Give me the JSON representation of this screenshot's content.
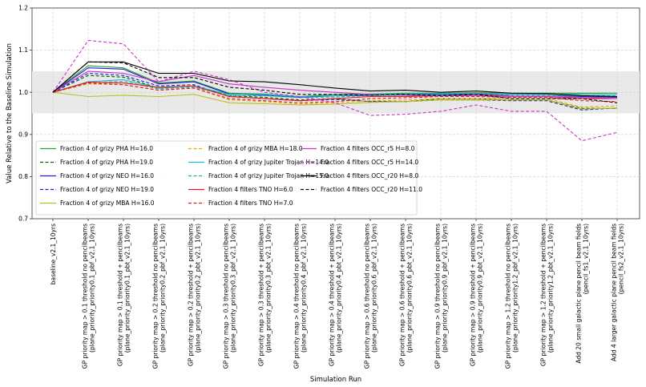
{
  "chart_data": {
    "type": "line",
    "xlabel": "Simulation Run",
    "ylabel": "Value Relative to the Baseline Simulation",
    "ylim": [
      0.7,
      1.2
    ],
    "yticks": [
      0.7,
      0.8,
      0.9,
      1.0,
      1.1,
      1.2
    ],
    "ytick_labels": [
      "0.7",
      "0.8",
      "0.9",
      "1.0",
      "1.1",
      "1.2"
    ],
    "grid": true,
    "shaded_band": [
      0.95,
      1.05
    ],
    "legend_location": "lower-left",
    "categories": [
      [
        "baseline_v2.1_10yrs"
      ],
      [
        "GP priority map > 0.1 threshold no pencilbeams",
        "(plane_priority_priority0.1_pbf_v2.1_10yrs)"
      ],
      [
        "GP priority map > 0.1 threshold + pencilbeams",
        "(plane_priority_priority0.1_pbt_v2.1_10yrs)"
      ],
      [
        "GP priority map > 0.2 threshold no pencilbeams",
        "(plane_priority_priority0.2_pbf_v2.1_10yrs)"
      ],
      [
        "GP priority map > 0.2 threshold + pencilbeams",
        "(plane_priority_priority0.2_pbt_v2.1_10yrs)"
      ],
      [
        "GP priority map > 0.3 threshold no pencilbeams",
        "(plane_priority_priority0.3_pbf_v2.1_10yrs)"
      ],
      [
        "GP priority map > 0.3 threshold + pencilbeams",
        "(plane_priority_priority0.3_pbt_v2.1_10yrs)"
      ],
      [
        "GP priority map > 0.4 threshold no pencilbeams",
        "(plane_priority_priority0.4_pbf_v2.1_10yrs)"
      ],
      [
        "GP priority map > 0.4 threshold + pencilbeams",
        "(plane_priority_priority0.4_pbt_v2.1_10yrs)"
      ],
      [
        "GP priority map > 0.6 threshold no pencilbeams",
        "(plane_priority_priority0.6_pbf_v2.1_10yrs)"
      ],
      [
        "GP priority map > 0.6 threshold + pencilbeams",
        "(plane_priority_priority0.6_pbt_v2.1_10yrs)"
      ],
      [
        "GP priority map > 0.9 threshold no pencilbeams",
        "(plane_priority_priority0.9_pbf_v2.1_10yrs)"
      ],
      [
        "GP priority map > 0.9 threshold + pencilbeams",
        "(plane_priority_priority0.9_pbt_v2.1_10yrs)"
      ],
      [
        "GP priority map > 1.2 threshold no pencilbeams",
        "(plane_priority_priority1.2_pbf_v2.1_10yrs)"
      ],
      [
        "GP priority map > 1.2 threshold + pencilbeams",
        "(plane_priority_priority1.2_pbt_v2.1_10yrs)"
      ],
      [
        "Add 20 small galactic plane pencil beam fields",
        "(pencil_fs1_v2.1_10yrs)"
      ],
      [
        "Add 4 larger galactic plane pencil beam fields",
        "(pencil_fs2_v2.1_10yrs)"
      ]
    ],
    "series": [
      {
        "name": "Fraction 4 of grizy PHA H=16.0",
        "color": "#2ca02c",
        "dash": "solid",
        "values": [
          1.0,
          1.063,
          1.058,
          1.022,
          1.027,
          0.998,
          0.996,
          0.99,
          0.995,
          0.996,
          0.998,
          0.998,
          0.999,
          0.998,
          0.998,
          0.998,
          0.998
        ]
      },
      {
        "name": "Fraction 4 of grizy PHA H=19.0",
        "color": "#006400",
        "dash": "dashed",
        "values": [
          1.0,
          1.04,
          1.036,
          1.01,
          1.015,
          0.992,
          0.988,
          0.982,
          0.985,
          0.978,
          0.978,
          0.985,
          0.985,
          0.982,
          0.982,
          0.962,
          0.962
        ]
      },
      {
        "name": "Fraction 4 of grizy NEO H=16.0",
        "color": "#1f1fd0",
        "dash": "solid",
        "values": [
          1.0,
          1.058,
          1.055,
          1.02,
          1.025,
          0.996,
          0.993,
          0.988,
          0.992,
          0.993,
          0.995,
          0.995,
          0.996,
          0.993,
          0.993,
          0.99,
          0.988
        ]
      },
      {
        "name": "Fraction 4 of grizy NEO H=19.0",
        "color": "#1f1fd0",
        "dash": "dashed",
        "values": [
          1.0,
          1.045,
          1.04,
          1.015,
          1.018,
          0.99,
          0.985,
          0.98,
          0.983,
          0.978,
          0.978,
          0.982,
          0.982,
          0.98,
          0.98,
          0.958,
          0.963
        ]
      },
      {
        "name": "Fraction 4 of grizy MBA H=16.0",
        "color": "#bcbd22",
        "dash": "solid",
        "values": [
          1.0,
          0.99,
          0.993,
          0.99,
          0.995,
          0.975,
          0.973,
          0.97,
          0.972,
          0.976,
          0.978,
          0.982,
          0.982,
          0.982,
          0.982,
          0.96,
          0.963
        ]
      },
      {
        "name": "Fraction 4 of grizy MBA H=18.0",
        "color": "#f0a500",
        "dash": "dashed",
        "values": [
          1.0,
          1.02,
          1.018,
          1.005,
          1.01,
          0.982,
          0.978,
          0.972,
          0.975,
          0.98,
          0.982,
          0.985,
          0.985,
          0.985,
          0.985,
          0.965,
          0.968
        ]
      },
      {
        "name": "Fraction 4 of grizy Jupiter Trojan H=14.0",
        "color": "#17becf",
        "dash": "solid",
        "values": [
          1.0,
          1.025,
          1.03,
          1.01,
          1.015,
          0.995,
          0.995,
          0.99,
          0.992,
          0.995,
          0.996,
          0.997,
          0.998,
          0.996,
          0.996,
          0.995,
          0.994
        ]
      },
      {
        "name": "Fraction 4 of grizy Jupiter Trojan H=15.0",
        "color": "#20b2aa",
        "dash": "dashed",
        "values": [
          1.0,
          1.022,
          1.026,
          1.008,
          1.012,
          0.992,
          0.992,
          0.987,
          0.989,
          0.992,
          0.993,
          0.994,
          0.995,
          0.993,
          0.993,
          0.992,
          0.991
        ]
      },
      {
        "name": "Fraction 4 filters TNO H=6.0",
        "color": "#e31a1c",
        "dash": "solid",
        "values": [
          1.0,
          1.024,
          1.022,
          1.012,
          1.015,
          0.99,
          0.985,
          0.98,
          0.985,
          0.99,
          0.99,
          0.992,
          0.995,
          0.99,
          0.99,
          0.985,
          0.985
        ]
      },
      {
        "name": "Fraction 4 filters TNO H=7.0",
        "color": "#e31a1c",
        "dash": "dashed",
        "values": [
          1.0,
          1.022,
          1.018,
          1.005,
          1.01,
          0.985,
          0.98,
          0.975,
          0.978,
          0.985,
          0.987,
          0.99,
          0.99,
          0.988,
          0.988,
          0.98,
          0.978
        ]
      },
      {
        "name": "Fraction 4 filters OCC_r5 H=8.0",
        "color": "#cc33cc",
        "dash": "solid",
        "values": [
          1.0,
          1.05,
          1.045,
          1.025,
          1.04,
          1.02,
          1.012,
          1.005,
          1.0,
          0.995,
          0.993,
          0.992,
          0.992,
          0.99,
          0.99,
          0.988,
          0.985
        ]
      },
      {
        "name": "Fraction 4 filters OCC_r5 H=14.0",
        "color": "#cc33cc",
        "dash": "dashed",
        "values": [
          1.0,
          1.123,
          1.115,
          1.025,
          1.05,
          1.03,
          1.0,
          0.99,
          0.975,
          0.945,
          0.948,
          0.955,
          0.97,
          0.955,
          0.955,
          0.885,
          0.905
        ]
      },
      {
        "name": "Fraction 4 filters OCC_r20 H=8.0",
        "color": "#000000",
        "dash": "solid",
        "values": [
          1.0,
          1.072,
          1.072,
          1.045,
          1.045,
          1.027,
          1.025,
          1.018,
          1.01,
          1.003,
          1.005,
          1.0,
          1.003,
          0.998,
          0.997,
          0.992,
          0.99
        ]
      },
      {
        "name": "Fraction 4 filters OCC_r20 H=11.0",
        "color": "#000000",
        "dash": "dashed",
        "values": [
          1.0,
          1.072,
          1.07,
          1.035,
          1.035,
          1.012,
          1.005,
          0.995,
          0.995,
          0.993,
          0.995,
          0.992,
          0.995,
          0.985,
          0.985,
          0.985,
          0.975
        ]
      }
    ]
  }
}
